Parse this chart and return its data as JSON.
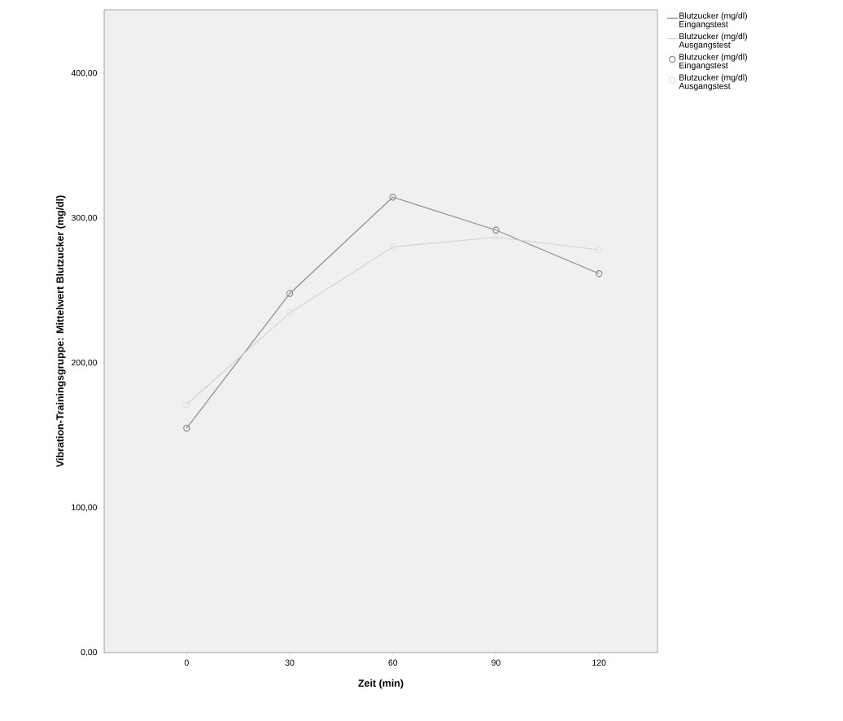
{
  "chart_data": {
    "type": "line",
    "xlabel": "Zeit (min)",
    "ylabel": "Vibration-Trainingsgruppe: Mittelwert Blutzucker (mg/dl)",
    "x": [
      0,
      30,
      60,
      90,
      120
    ],
    "xlim": [
      -24,
      137
    ],
    "xticks": [
      0,
      30,
      60,
      90,
      120
    ],
    "ylim": [
      0,
      444
    ],
    "yticks": [
      {
        "value": 0,
        "label": "0,00"
      },
      {
        "value": 100,
        "label": "100,00"
      },
      {
        "value": 200,
        "label": "200,00"
      },
      {
        "value": 300,
        "label": "300,00"
      },
      {
        "value": 400,
        "label": "400,00"
      }
    ],
    "legend": "top right",
    "grid": false,
    "series": [
      {
        "name": "Blutzucker (mg/dl) Eingangstest",
        "type": "line",
        "marker": "none",
        "color": "#8c8c8c",
        "values": [
          155,
          248,
          314.6,
          291.8,
          261.8
        ]
      },
      {
        "name": "Blutzucker (mg/dl) Ausgangstest",
        "type": "line",
        "marker": "none",
        "color": "#d2d2d2",
        "values": [
          171.4,
          234.7,
          280.2,
          286.9,
          278.2
        ]
      },
      {
        "name": "Blutzucker (mg/dl) Eingangstest",
        "type": "scatter",
        "marker": "circle",
        "color": "#8c8c8c",
        "values": [
          155,
          248,
          314.6,
          291.8,
          261.8
        ]
      },
      {
        "name": "Blutzucker (mg/dl) Ausgangstest",
        "type": "scatter",
        "marker": "circle",
        "color": "#e0e0e0",
        "values": [
          171.4,
          234.7,
          280.2,
          286.9,
          278.2
        ]
      }
    ]
  }
}
